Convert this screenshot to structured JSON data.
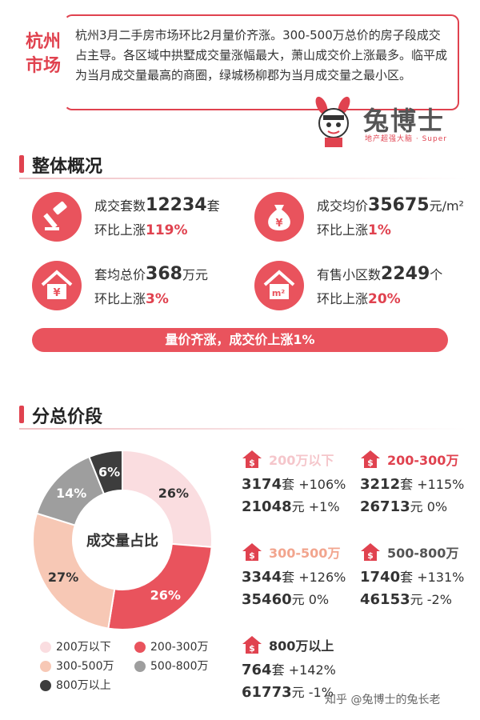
{
  "intro": {
    "city": "杭州市场",
    "text": "杭州3月二手房市场环比2月量价齐涨。300-500万总价的房子段成交占主导。各区域中拱墅成交量涨幅最大，萧山成交价上涨最多。临平成为当月成交量最高的商圈，绿城杨柳郡为当月成交量之最小区。"
  },
  "logo": {
    "name": "兔博士",
    "tagline": "地产超强大脑 · Super"
  },
  "overview": {
    "title": "整体概况",
    "stats": [
      {
        "label": "成交套数",
        "value": "12234",
        "unit": "套",
        "change_label": "环比上涨",
        "change": "119%",
        "icon": "gavel-icon"
      },
      {
        "label": "成交均价",
        "value": "35675",
        "unit": "元/m²",
        "change_label": "环比上涨",
        "change": "1%",
        "icon": "money-bag-icon"
      },
      {
        "label": "套均总价",
        "value": "368",
        "unit": "万元",
        "change_label": "环比上涨",
        "change": "3%",
        "icon": "house-yuan-icon"
      },
      {
        "label": "有售小区数",
        "value": "2249",
        "unit": "个",
        "change_label": "环比上涨",
        "change": "20%",
        "icon": "house-area-icon"
      }
    ],
    "banner": "量价齐涨，成交价上涨1%"
  },
  "price_bands": {
    "title": "分总价段",
    "donut_center": "成交量占比",
    "bands": [
      {
        "name": "200万以下",
        "units": "3174",
        "unit_suffix": "套",
        "unit_change": "+106%",
        "price": "21048",
        "price_suffix": "元",
        "price_change": "+1%",
        "color": "#fadde0",
        "name_color": "#f5c6cb"
      },
      {
        "name": "200-300万",
        "units": "3212",
        "unit_suffix": "套",
        "unit_change": "+115%",
        "price": "26713",
        "price_suffix": "元",
        "price_change": "0%",
        "color": "#e9535d",
        "name_color": "#e0424f"
      },
      {
        "name": "300-500万",
        "units": "3344",
        "unit_suffix": "套",
        "unit_change": "+126%",
        "price": "35460",
        "price_suffix": "元",
        "price_change": "0%",
        "color": "#f7c8b5",
        "name_color": "#f2a58e"
      },
      {
        "name": "500-800万",
        "units": "1740",
        "unit_suffix": "套",
        "unit_change": "+131%",
        "price": "46153",
        "price_suffix": "元",
        "price_change": "-2%",
        "color": "#9e9e9e",
        "name_color": "#555555"
      },
      {
        "name": "800万以上",
        "units": "764",
        "unit_suffix": "套",
        "unit_change": "+142%",
        "price": "61773",
        "price_suffix": "元",
        "price_change": "-1%",
        "color": "#3d3d3d",
        "name_color": "#333333"
      }
    ],
    "shares": [
      "26%",
      "26%",
      "27%",
      "14%",
      "6%"
    ],
    "share_values": [
      26,
      26,
      27,
      14,
      6
    ],
    "legend": [
      "200万以下",
      "200-300万",
      "300-500万",
      "500-800万",
      "800万以上"
    ]
  },
  "watermark": "知乎 @兔博士的兔长老"
}
